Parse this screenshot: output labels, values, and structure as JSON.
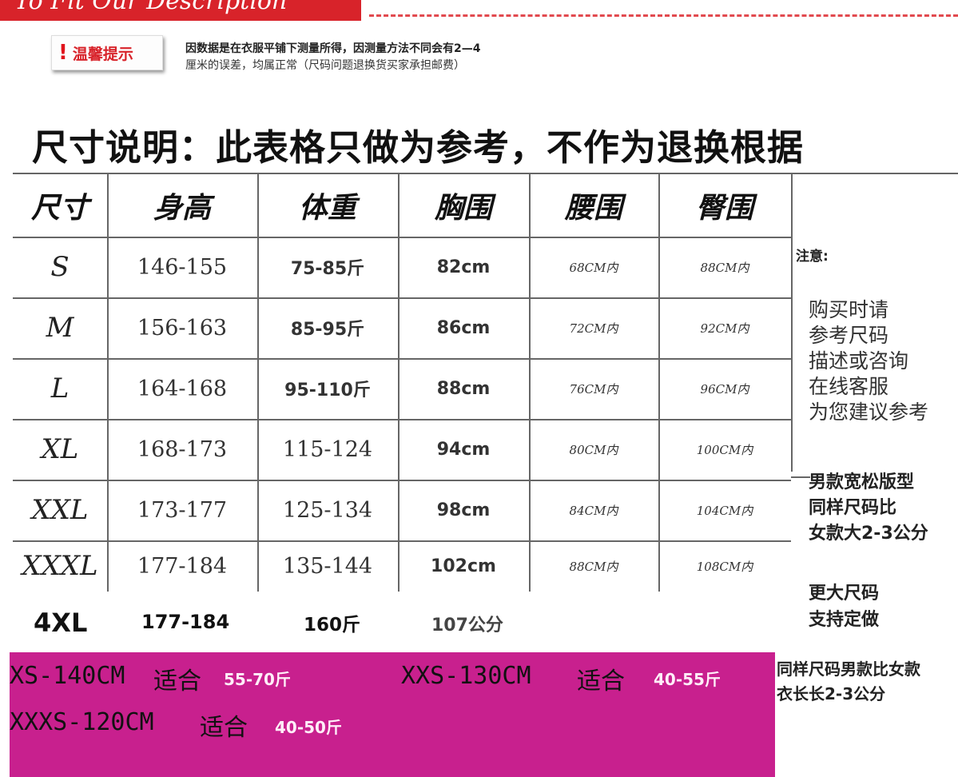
{
  "banner": {
    "text": "To Fit Our Description"
  },
  "tip": {
    "icon": "exclamation-icon",
    "icon_glyph": "!",
    "label": "温馨提示",
    "line1": "因数据是在衣服平铺下测量所得，因测量方法不同会有2—4",
    "line2": "厘米的误差，均属正常（尺码问题退换货买家承担邮费）"
  },
  "heading": "尺寸说明：此表格只做为参考，不作为退换根据",
  "table": {
    "headers": [
      "尺寸",
      "身高",
      "体重",
      "胸围",
      "腰围",
      "臀围"
    ],
    "rows": [
      [
        "S",
        "146-155",
        "75-85斤",
        "82cm",
        "68CM内",
        "88CM内"
      ],
      [
        "M",
        "156-163",
        "85-95斤",
        "86cm",
        "72CM内",
        "92CM内"
      ],
      [
        "L",
        "164-168",
        "95-110斤",
        "88cm",
        "76CM内",
        "96CM内"
      ],
      [
        "XL",
        "168-173",
        "115-124",
        "94cm",
        "80CM内",
        "100CM内"
      ],
      [
        "XXL",
        "173-177",
        "125-134",
        "98cm",
        "84CM内",
        "104CM内"
      ],
      [
        "XXXL",
        "177-184",
        "135-144",
        "102cm",
        "88CM内",
        "108CM内"
      ]
    ]
  },
  "row_4xl": {
    "size": "4XL",
    "height": "177-184",
    "weight": "160斤",
    "chest": "107公分"
  },
  "notes": {
    "title": "注意:",
    "lines": [
      "购买时请",
      "参考尺码",
      "描述或咨询",
      "在线客服",
      "为您建议参考"
    ],
    "men_lines": [
      "男款宽松版型",
      "同样尺码比",
      "女款大2-3公分"
    ],
    "bigger_lines": [
      "更大尺码",
      "支持定做"
    ]
  },
  "small_sizes": {
    "xs": {
      "size": "XS-140CM",
      "fit": "适合",
      "weight": "55-70斤"
    },
    "xxs": {
      "size": "XXS-130CM",
      "fit": "适合",
      "weight": "40-55斤"
    },
    "xxxs": {
      "size": "XXXS-120CM",
      "fit": "适合",
      "weight": "40-50斤"
    }
  },
  "bottom_note": [
    "同样尺码男款比女款",
    "衣长长2-3公分"
  ],
  "colors": {
    "banner_red": "#d8232a",
    "magenta": "#c8208e"
  }
}
